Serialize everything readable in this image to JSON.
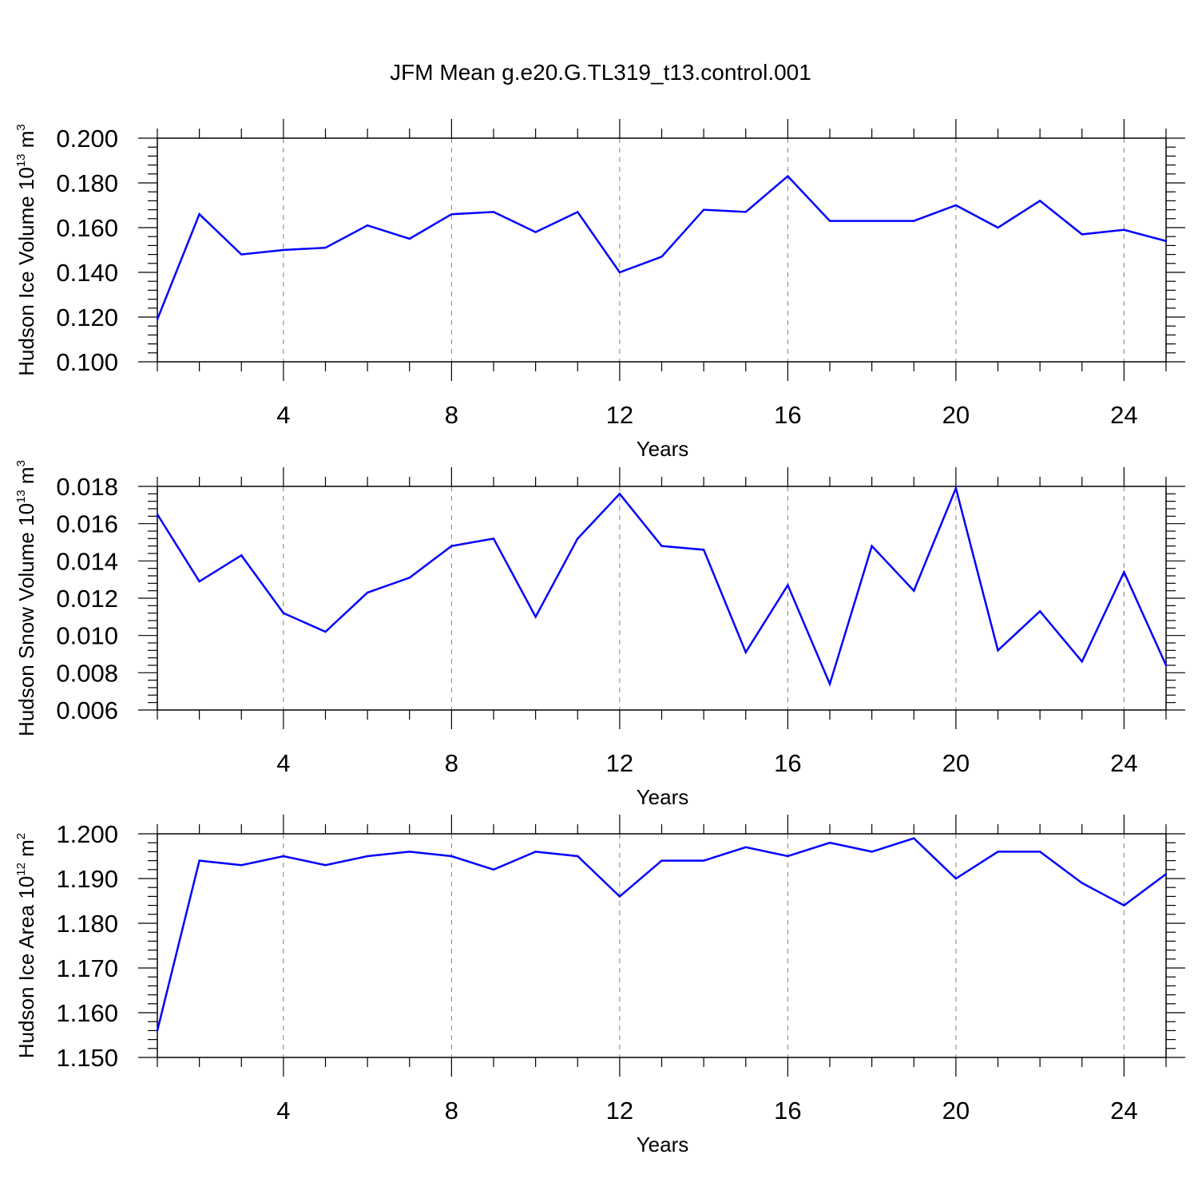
{
  "title": "JFM Mean g.e20.G.TL319_t13.control.001",
  "colors": {
    "line": "#0000ff",
    "axis": "#000000",
    "grid": "#808080"
  },
  "chart_data": [
    {
      "type": "line",
      "xlabel": "Years",
      "ylabel": {
        "text": "Hudson Ice Volume 10",
        "exponent": "13",
        "unit": " m",
        "unit_exponent": "3"
      },
      "xlim": [
        1,
        25
      ],
      "ylim": [
        0.1,
        0.2
      ],
      "xticks": [
        4,
        8,
        12,
        16,
        20,
        24
      ],
      "ytick_labels": [
        "0.100",
        "0.120",
        "0.140",
        "0.160",
        "0.180",
        "0.200"
      ],
      "x_grid": "dashed",
      "x": [
        1,
        2,
        3,
        4,
        5,
        6,
        7,
        8,
        9,
        10,
        11,
        12,
        13,
        14,
        15,
        16,
        17,
        18,
        19,
        20,
        21,
        22,
        23,
        24,
        25
      ],
      "y": [
        0.119,
        0.166,
        0.148,
        0.15,
        0.151,
        0.161,
        0.155,
        0.166,
        0.167,
        0.158,
        0.167,
        0.14,
        0.147,
        0.168,
        0.167,
        0.183,
        0.163,
        0.163,
        0.163,
        0.17,
        0.16,
        0.172,
        0.157,
        0.159,
        0.154
      ]
    },
    {
      "type": "line",
      "xlabel": "Years",
      "ylabel": {
        "text": "Hudson Snow Volume 10",
        "exponent": "13",
        "unit": " m",
        "unit_exponent": "3"
      },
      "xlim": [
        1,
        25
      ],
      "ylim": [
        0.006,
        0.018
      ],
      "xticks": [
        4,
        8,
        12,
        16,
        20,
        24
      ],
      "ytick_labels": [
        "0.006",
        "0.008",
        "0.010",
        "0.012",
        "0.014",
        "0.016",
        "0.018"
      ],
      "x_grid": "dashed",
      "x": [
        1,
        2,
        3,
        4,
        5,
        6,
        7,
        8,
        9,
        10,
        11,
        12,
        13,
        14,
        15,
        16,
        17,
        18,
        19,
        20,
        21,
        22,
        23,
        24,
        25
      ],
      "y": [
        0.0165,
        0.0129,
        0.0143,
        0.0112,
        0.0102,
        0.0123,
        0.0131,
        0.0148,
        0.0152,
        0.011,
        0.0152,
        0.0176,
        0.0148,
        0.0146,
        0.0091,
        0.0127,
        0.0074,
        0.0148,
        0.0124,
        0.0179,
        0.0092,
        0.0113,
        0.0086,
        0.0134,
        0.0084
      ]
    },
    {
      "type": "line",
      "xlabel": "Years",
      "ylabel": {
        "text": "Hudson Ice Area 10",
        "exponent": "12",
        "unit": " m",
        "unit_exponent": "2"
      },
      "xlim": [
        1,
        25
      ],
      "ylim": [
        1.15,
        1.2
      ],
      "xticks": [
        4,
        8,
        12,
        16,
        20,
        24
      ],
      "ytick_labels": [
        "1.150",
        "1.160",
        "1.170",
        "1.180",
        "1.190",
        "1.200"
      ],
      "x_grid": "dashed",
      "x": [
        1,
        2,
        3,
        4,
        5,
        6,
        7,
        8,
        9,
        10,
        11,
        12,
        13,
        14,
        15,
        16,
        17,
        18,
        19,
        20,
        21,
        22,
        23,
        24,
        25
      ],
      "y": [
        1.156,
        1.194,
        1.193,
        1.195,
        1.193,
        1.195,
        1.196,
        1.195,
        1.192,
        1.196,
        1.195,
        1.186,
        1.194,
        1.194,
        1.197,
        1.195,
        1.198,
        1.196,
        1.199,
        1.19,
        1.196,
        1.196,
        1.189,
        1.184,
        1.191
      ]
    }
  ]
}
